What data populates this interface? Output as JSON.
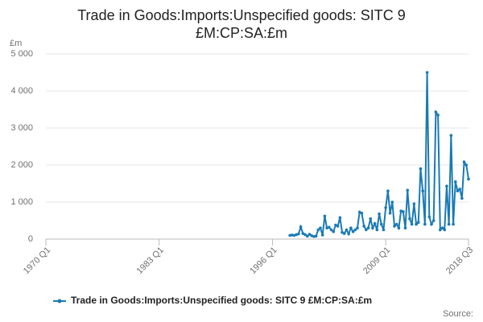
{
  "chart_data": {
    "type": "line",
    "title": "Trade in Goods:Imports:Unspecified goods: SITC 9",
    "subtitle": "£M:CP:SA:£m",
    "y_unit": "£m",
    "source": "Source:",
    "xlim": [
      "1970 Q1",
      "2018 Q3"
    ],
    "xticks": [
      "1970 Q1",
      "1983 Q1",
      "1996 Q1",
      "2009 Q1",
      "2018 Q3"
    ],
    "ylim": [
      0,
      5000
    ],
    "yticks": [
      0,
      {
        "value": 1000,
        "label": "1 000"
      },
      {
        "value": 2000,
        "label": "2 000"
      },
      {
        "value": 3000,
        "label": "3 000"
      },
      {
        "value": 4000,
        "label": "4 000"
      },
      {
        "value": 5000,
        "label": "5 000"
      }
    ],
    "grid": true,
    "legend": "bottom",
    "x": [
      "1998 Q1",
      "1998 Q2",
      "1998 Q3",
      "1998 Q4",
      "1999 Q1",
      "1999 Q2",
      "1999 Q3",
      "1999 Q4",
      "2000 Q1",
      "2000 Q2",
      "2000 Q3",
      "2000 Q4",
      "2001 Q1",
      "2001 Q2",
      "2001 Q3",
      "2001 Q4",
      "2002 Q1",
      "2002 Q2",
      "2002 Q3",
      "2002 Q4",
      "2003 Q1",
      "2003 Q2",
      "2003 Q3",
      "2003 Q4",
      "2004 Q1",
      "2004 Q2",
      "2004 Q3",
      "2004 Q4",
      "2005 Q1",
      "2005 Q2",
      "2005 Q3",
      "2005 Q4",
      "2006 Q1",
      "2006 Q2",
      "2006 Q3",
      "2006 Q4",
      "2007 Q1",
      "2007 Q2",
      "2007 Q3",
      "2007 Q4",
      "2008 Q1",
      "2008 Q2",
      "2008 Q3",
      "2008 Q4",
      "2009 Q1",
      "2009 Q2",
      "2009 Q3",
      "2009 Q4",
      "2010 Q1",
      "2010 Q2",
      "2010 Q3",
      "2010 Q4",
      "2011 Q1",
      "2011 Q2",
      "2011 Q3",
      "2011 Q4",
      "2012 Q1",
      "2012 Q2",
      "2012 Q3",
      "2012 Q4",
      "2013 Q1",
      "2013 Q2",
      "2013 Q3",
      "2013 Q4",
      "2014 Q1",
      "2014 Q2",
      "2014 Q3",
      "2014 Q4",
      "2015 Q1",
      "2015 Q2",
      "2015 Q3",
      "2015 Q4",
      "2016 Q1",
      "2016 Q2",
      "2016 Q3",
      "2016 Q4",
      "2017 Q1",
      "2017 Q2",
      "2017 Q3",
      "2017 Q4",
      "2018 Q1",
      "2018 Q2",
      "2018 Q3"
    ],
    "series": [
      {
        "name": "Trade in Goods:Imports:Unspecified goods: SITC 9 £M:CP:SA:£m",
        "color": "#1a7ab5",
        "values": [
          100,
          110,
          100,
          120,
          140,
          330,
          150,
          120,
          80,
          130,
          90,
          70,
          80,
          250,
          300,
          110,
          620,
          300,
          320,
          250,
          200,
          380,
          350,
          580,
          180,
          150,
          250,
          140,
          300,
          200,
          250,
          300,
          730,
          700,
          350,
          250,
          300,
          550,
          300,
          420,
          250,
          680,
          400,
          250,
          850,
          1300,
          700,
          1000,
          350,
          400,
          300,
          760,
          740,
          300,
          1320,
          550,
          400,
          950,
          400,
          450,
          1900,
          1300,
          400,
          4500,
          600,
          400,
          500,
          3430,
          3350,
          250,
          300,
          250,
          1430,
          400,
          2800,
          400,
          1550,
          1300,
          1350,
          1100,
          2080,
          2000,
          1620
        ]
      }
    ]
  }
}
